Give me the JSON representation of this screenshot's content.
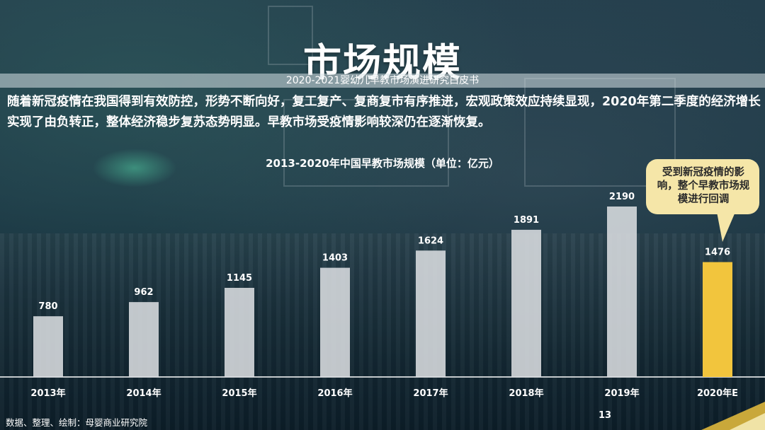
{
  "page": {
    "title": "市场规模",
    "subtitle": "2020-2021婴幼儿早教市场演进研究白皮书",
    "paragraph": "随着新冠疫情在我国得到有效防控，形势不断向好，复工复产、复商复市有序推进，宏观政策效应持续显现，2020年第二季度的经济增长实现了由负转正，整体经济稳步复苏态势明显。早教市场受疫情影响较深仍在逐渐恢复。",
    "callout": "受到新冠疫情的影响，整个早教市场规模进行回调",
    "source": "数据、整理、绘制：母婴商业研究院",
    "page_number": "13"
  },
  "colors": {
    "bar_default": "#d9dde0",
    "bar_highlight": "#f2c53d",
    "callout_bg": "#f5e6a8",
    "text": "#ffffff",
    "axis": "#ffffff"
  },
  "chart_data": {
    "type": "bar",
    "title": "2013-2020年中国早教市场规模（单位：亿元）",
    "categories": [
      "2013年",
      "2014年",
      "2015年",
      "2016年",
      "2017年",
      "2018年",
      "2019年",
      "2020年E"
    ],
    "values": [
      780,
      962,
      1145,
      1403,
      1624,
      1891,
      2190,
      1476
    ],
    "highlight_index": 7,
    "ylim": [
      0,
      2190
    ],
    "grid": false,
    "legend": "none"
  }
}
